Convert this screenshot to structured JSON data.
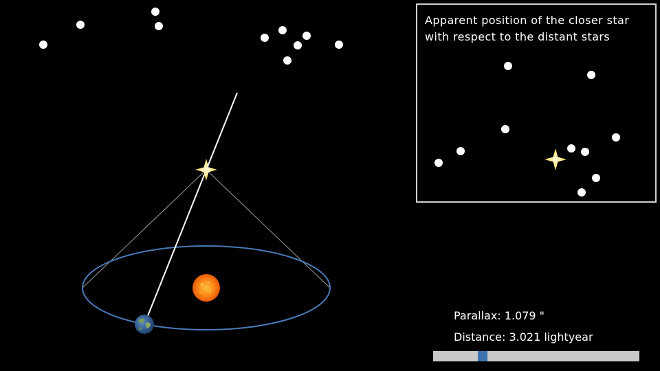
{
  "inset": {
    "title_line1": "Apparent position of the closer star",
    "title_line2": "with respect to the distant stars"
  },
  "readout": {
    "parallax_label": "Parallax:",
    "parallax_value": "1.079",
    "parallax_unit": "\"",
    "distance_label": "Distance:",
    "distance_value": "3.021",
    "distance_unit": "lightyear"
  },
  "slider": {
    "value_fraction": 0.24
  },
  "colors": {
    "background": "#000000",
    "orbit": "#4a7ab8",
    "sun": "#ff7a10",
    "near_star": "#ffe066",
    "slider_track": "#c8c8c8",
    "slider_thumb": "#3f73ad",
    "inset_border": "#d0d0d0"
  },
  "icons": {
    "sun": "sun-icon",
    "earth": "earth-icon",
    "near_star": "near-star-icon"
  }
}
